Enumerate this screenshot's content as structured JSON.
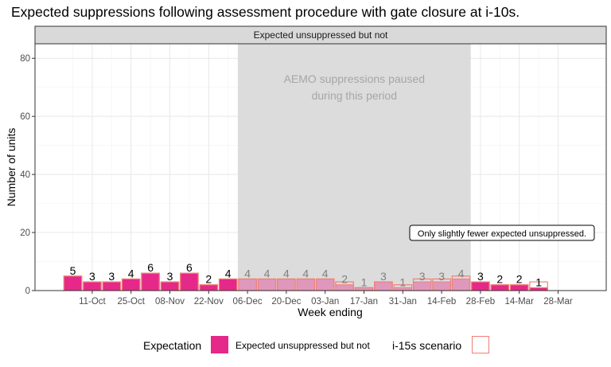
{
  "title": "Expected suppressions following assessment procedure with gate closure at i-10s.",
  "chart_data": {
    "type": "bar",
    "facet_label": "Expected unsuppressed but not",
    "xlabel": "Week ending",
    "ylabel": "Number of units",
    "ylim": [
      0,
      85
    ],
    "y_ticks": [
      0,
      20,
      40,
      60,
      80
    ],
    "x_tick_labels": [
      "11-Oct",
      "25-Oct",
      "08-Nov",
      "22-Nov",
      "06-Dec",
      "20-Dec",
      "03-Jan",
      "17-Jan",
      "31-Jan",
      "14-Feb",
      "28-Feb",
      "14-Mar",
      "28-Mar"
    ],
    "grid": true,
    "categories": [
      "04-Oct",
      "11-Oct",
      "18-Oct",
      "25-Oct",
      "01-Nov",
      "08-Nov",
      "15-Nov",
      "22-Nov",
      "29-Nov",
      "06-Dec",
      "13-Dec",
      "20-Dec",
      "27-Dec",
      "03-Jan",
      "10-Jan",
      "17-Jan",
      "24-Jan",
      "31-Jan",
      "07-Feb",
      "14-Feb",
      "21-Feb",
      "28-Feb",
      "07-Mar",
      "14-Mar",
      "21-Mar",
      "28-Mar"
    ],
    "series": [
      {
        "name": "Expected unsuppressed but not",
        "values": [
          5,
          3,
          3,
          4,
          6,
          3,
          6,
          2,
          4,
          4,
          4,
          4,
          4,
          4,
          2,
          1,
          3,
          1,
          3,
          3,
          4,
          3,
          2,
          2,
          1,
          0
        ]
      },
      {
        "name": "i-15s scenario",
        "values": [
          5,
          3,
          3,
          4,
          6,
          3,
          6,
          2,
          4,
          4,
          4,
          4,
          4,
          4,
          3,
          1,
          3,
          2,
          4,
          4,
          5,
          3,
          2,
          2,
          3,
          0
        ]
      }
    ],
    "data_labels": [
      "5",
      "3",
      "3",
      "4",
      "6",
      "3",
      "6",
      "2",
      "4",
      "4",
      "4",
      "4",
      "4",
      "4",
      "2",
      "1",
      "3",
      "1",
      "3",
      "3",
      "4",
      "3",
      "2",
      "2",
      "1",
      ""
    ],
    "shaded_region": {
      "from": "29-Nov",
      "to": "21-Feb",
      "label_line1": "AEMO suppressions paused",
      "label_line2": "during this period"
    },
    "annotation": "Only slightly fewer expected unsuppressed.",
    "legend": {
      "position": "bottom",
      "fill_title": "Expectation",
      "fill_label": "Expected unsuppressed but not",
      "outline_title": "i-15s scenario"
    },
    "colors": {
      "fill": "#e5288a",
      "outline": "#f08077",
      "shade": "#d9d9d9"
    }
  }
}
